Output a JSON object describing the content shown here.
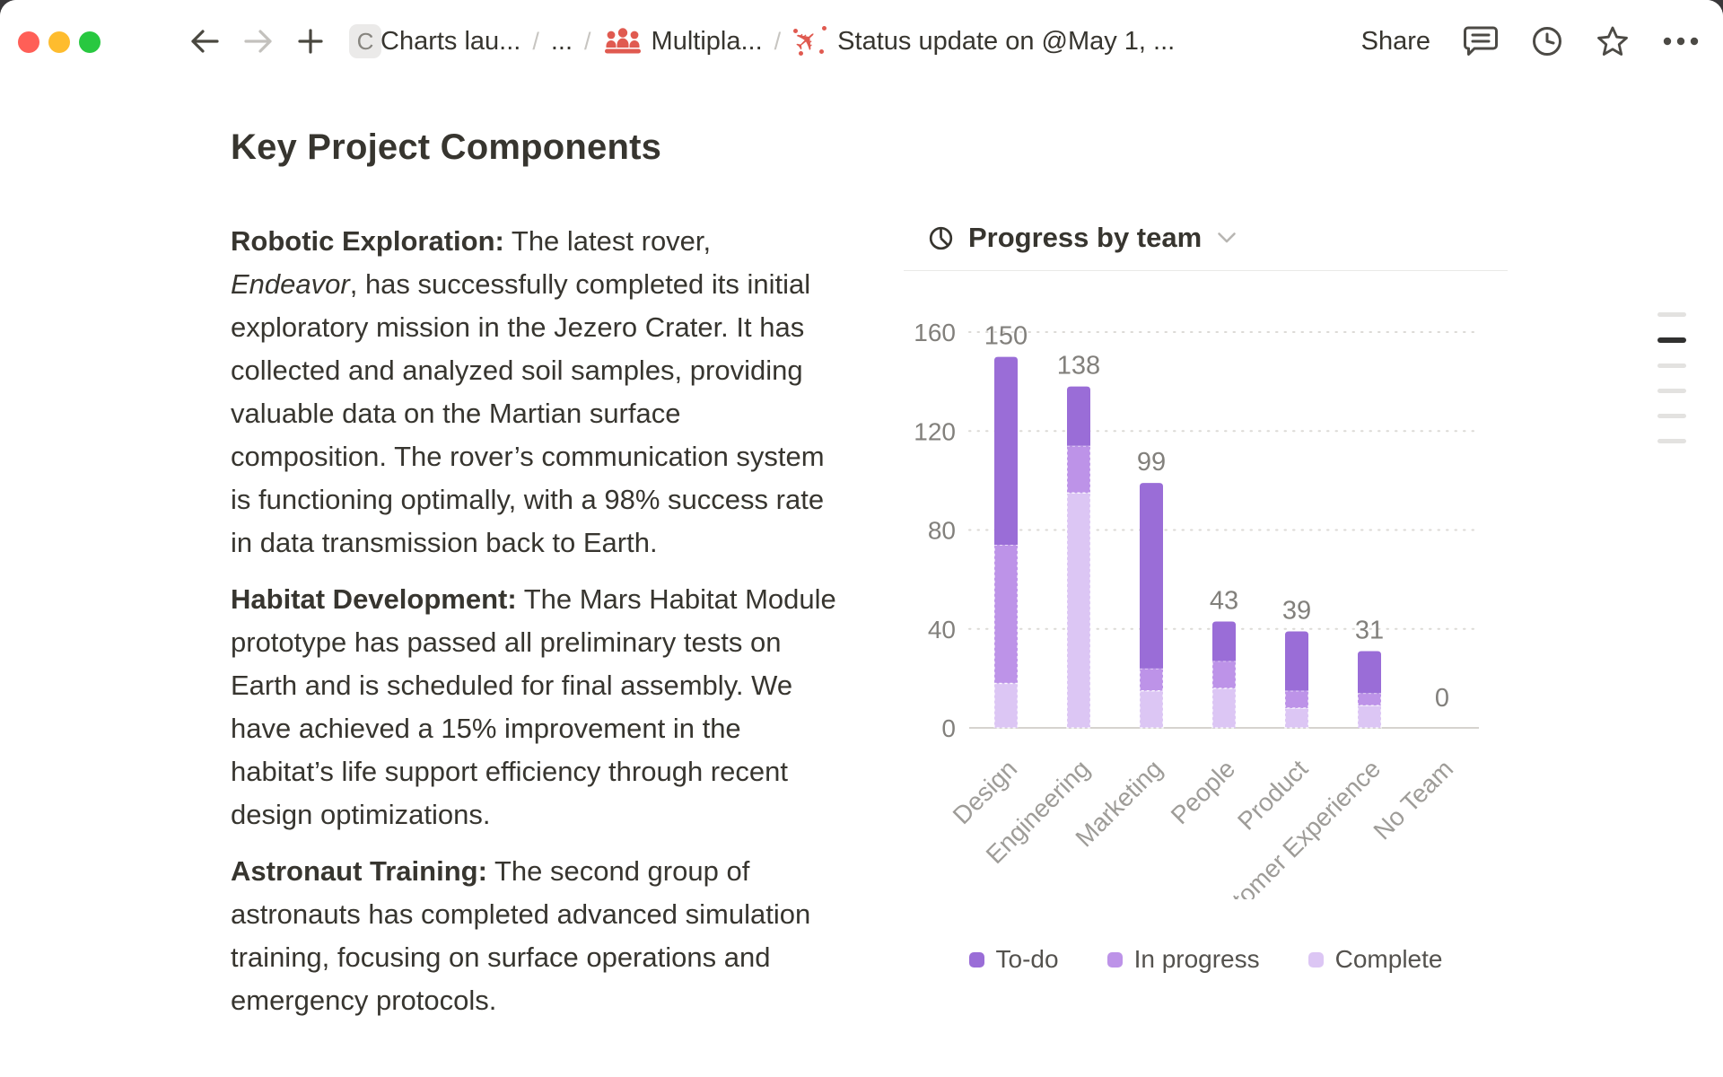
{
  "window": {
    "traffic_colors": [
      "#ff5f57",
      "#febc2e",
      "#28c840"
    ]
  },
  "topbar": {
    "workspace_badge": "C",
    "breadcrumb": {
      "item1": "Charts lau...",
      "sep": "/",
      "collapsed": "...",
      "item2": "Multipla...",
      "item3": "Status update on @May 1, ..."
    },
    "share": "Share"
  },
  "document": {
    "title": "Key Project Components",
    "paragraphs": [
      {
        "lead": "Robotic Exploration:",
        "segments": [
          {
            "t": " The latest rover, "
          },
          {
            "t": "Endeavor",
            "i": true
          },
          {
            "t": ", has successfully completed its initial exploratory mission in the Jezero Crater. It has collected and analyzed soil samples, providing valuable data on the Martian surface composition. The rover’s communication system is functioning optimally, with a 98% success rate in data transmission back to Earth."
          }
        ]
      },
      {
        "lead": "Habitat Development:",
        "segments": [
          {
            "t": " The Mars Habitat Module prototype has passed all preliminary tests on Earth and is scheduled for final assembly. We have achieved a 15% improvement in the habitat’s life support efficiency through recent design optimizations."
          }
        ]
      },
      {
        "lead": "Astronaut Training:",
        "segments": [
          {
            "t": " The second group of astronauts has completed advanced simulation training, focusing on surface operations and emergency protocols."
          }
        ]
      }
    ]
  },
  "chart": {
    "header_title": "Progress by team"
  },
  "chart_data": {
    "type": "bar",
    "stacked": true,
    "title": "Progress by team",
    "categories": [
      "Design",
      "Engineering",
      "Marketing",
      "People",
      "Product",
      "Customer Experience",
      "No Team"
    ],
    "series": [
      {
        "name": "To-do",
        "color": "#9a6dd7",
        "values": [
          76,
          24,
          75,
          16,
          24,
          17,
          0
        ]
      },
      {
        "name": "In progress",
        "color": "#bd93e8",
        "values": [
          56,
          19,
          9,
          11,
          7,
          5,
          0
        ]
      },
      {
        "name": "Complete",
        "color": "#dcc6f4",
        "values": [
          18,
          95,
          15,
          16,
          8,
          9,
          0
        ]
      }
    ],
    "totals": [
      150,
      138,
      99,
      43,
      39,
      31,
      0
    ],
    "ylim": [
      0,
      160
    ],
    "yticks": [
      0,
      40,
      80,
      120,
      160
    ],
    "grid": "dotted-horizontal",
    "legend_position": "bottom",
    "colors": {
      "tick_label": "#82807c",
      "data_label": "#82807c",
      "category_label": "#9e9c98",
      "gridline": "#dcdad6",
      "axis_line": "#d6d3cf"
    }
  },
  "toc": {
    "count": 6,
    "active_index": 1
  }
}
